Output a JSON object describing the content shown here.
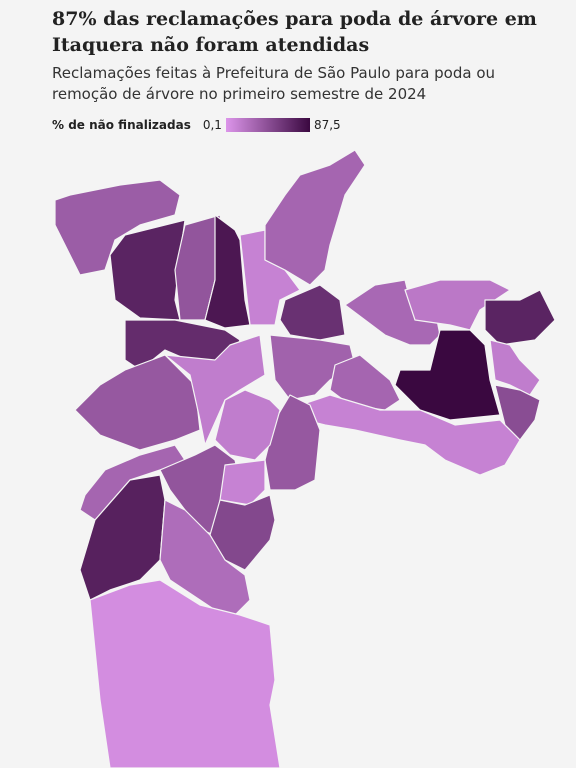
{
  "header": {
    "title": "87% das reclamações para poda de árvore em Itaquera não foram atendidas",
    "subtitle": "Reclamações feitas à Prefeitura de São Paulo para poda ou remoção de árvore no primeiro semestre de 2024"
  },
  "legend": {
    "label": "% de não finalizadas",
    "min": {
      "value": 0.1,
      "label": "0,1"
    },
    "max": {
      "value": 87.5,
      "label": "87,5"
    },
    "colors": [
      "#dc95ea",
      "#3a0840"
    ]
  },
  "map": {
    "region_values": [
      35,
      70,
      40,
      78,
      12,
      30,
      62,
      65,
      38,
      15,
      32,
      28,
      18,
      70,
      87.5,
      15,
      45,
      30,
      12,
      38,
      15,
      30,
      40,
      12,
      48,
      72,
      25,
      5
    ]
  }
}
